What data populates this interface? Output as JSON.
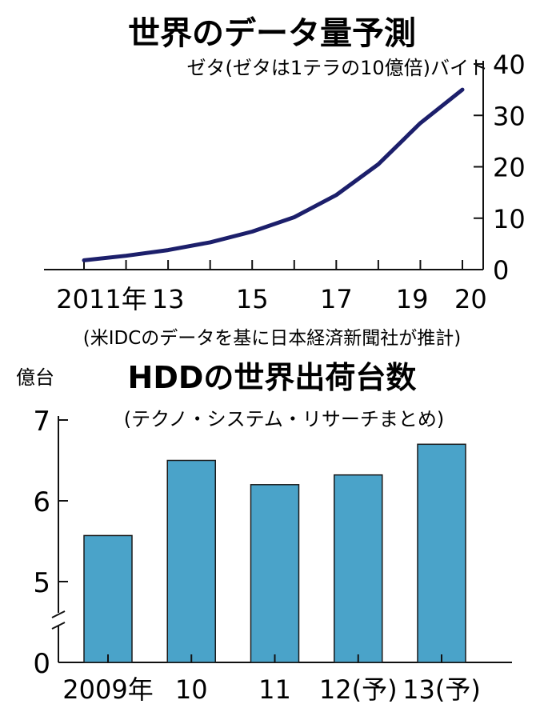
{
  "chart_data": [
    {
      "type": "line",
      "title": "世界のデータ量予測",
      "ylabel": "ゼタ(ゼタは1テラの10億倍)バイト",
      "source": "(米IDCのデータを基に日本経済新聞社が推計)",
      "x": [
        2011,
        2012,
        2013,
        2014,
        2015,
        2016,
        2017,
        2018,
        2019,
        2020
      ],
      "tick_labels": [
        {
          "x": 2011,
          "label": "2011年"
        },
        {
          "x": 2013,
          "label": "13"
        },
        {
          "x": 2015,
          "label": "15"
        },
        {
          "x": 2017,
          "label": "17"
        },
        {
          "x": 2019,
          "label": "19"
        },
        {
          "x": 2020,
          "label": "20"
        }
      ],
      "series": [
        {
          "values": [
            1.8,
            2.7,
            3.8,
            5.3,
            7.4,
            10.2,
            14.5,
            20.5,
            28.5,
            35.0
          ]
        }
      ],
      "ylim": [
        0,
        40
      ],
      "yticks": [
        0,
        10,
        20,
        30,
        40
      ],
      "axis_position": "right",
      "grid": false,
      "line_color": "#1c1f6b"
    },
    {
      "type": "bar",
      "title": "HDDの世界出荷台数",
      "subtitle": "(テクノ・システム・リサーチまとめ)",
      "ylabel": "億台",
      "categories": [
        "2009年",
        "10",
        "11",
        "12(予)",
        "13(予)"
      ],
      "values": [
        5.57,
        6.5,
        6.2,
        6.32,
        6.7
      ],
      "yticks": [
        0,
        5,
        6,
        7
      ],
      "ylim": [
        4.5,
        7
      ],
      "axis_break": true,
      "grid": false,
      "bar_color": "#4aa3c9"
    }
  ]
}
